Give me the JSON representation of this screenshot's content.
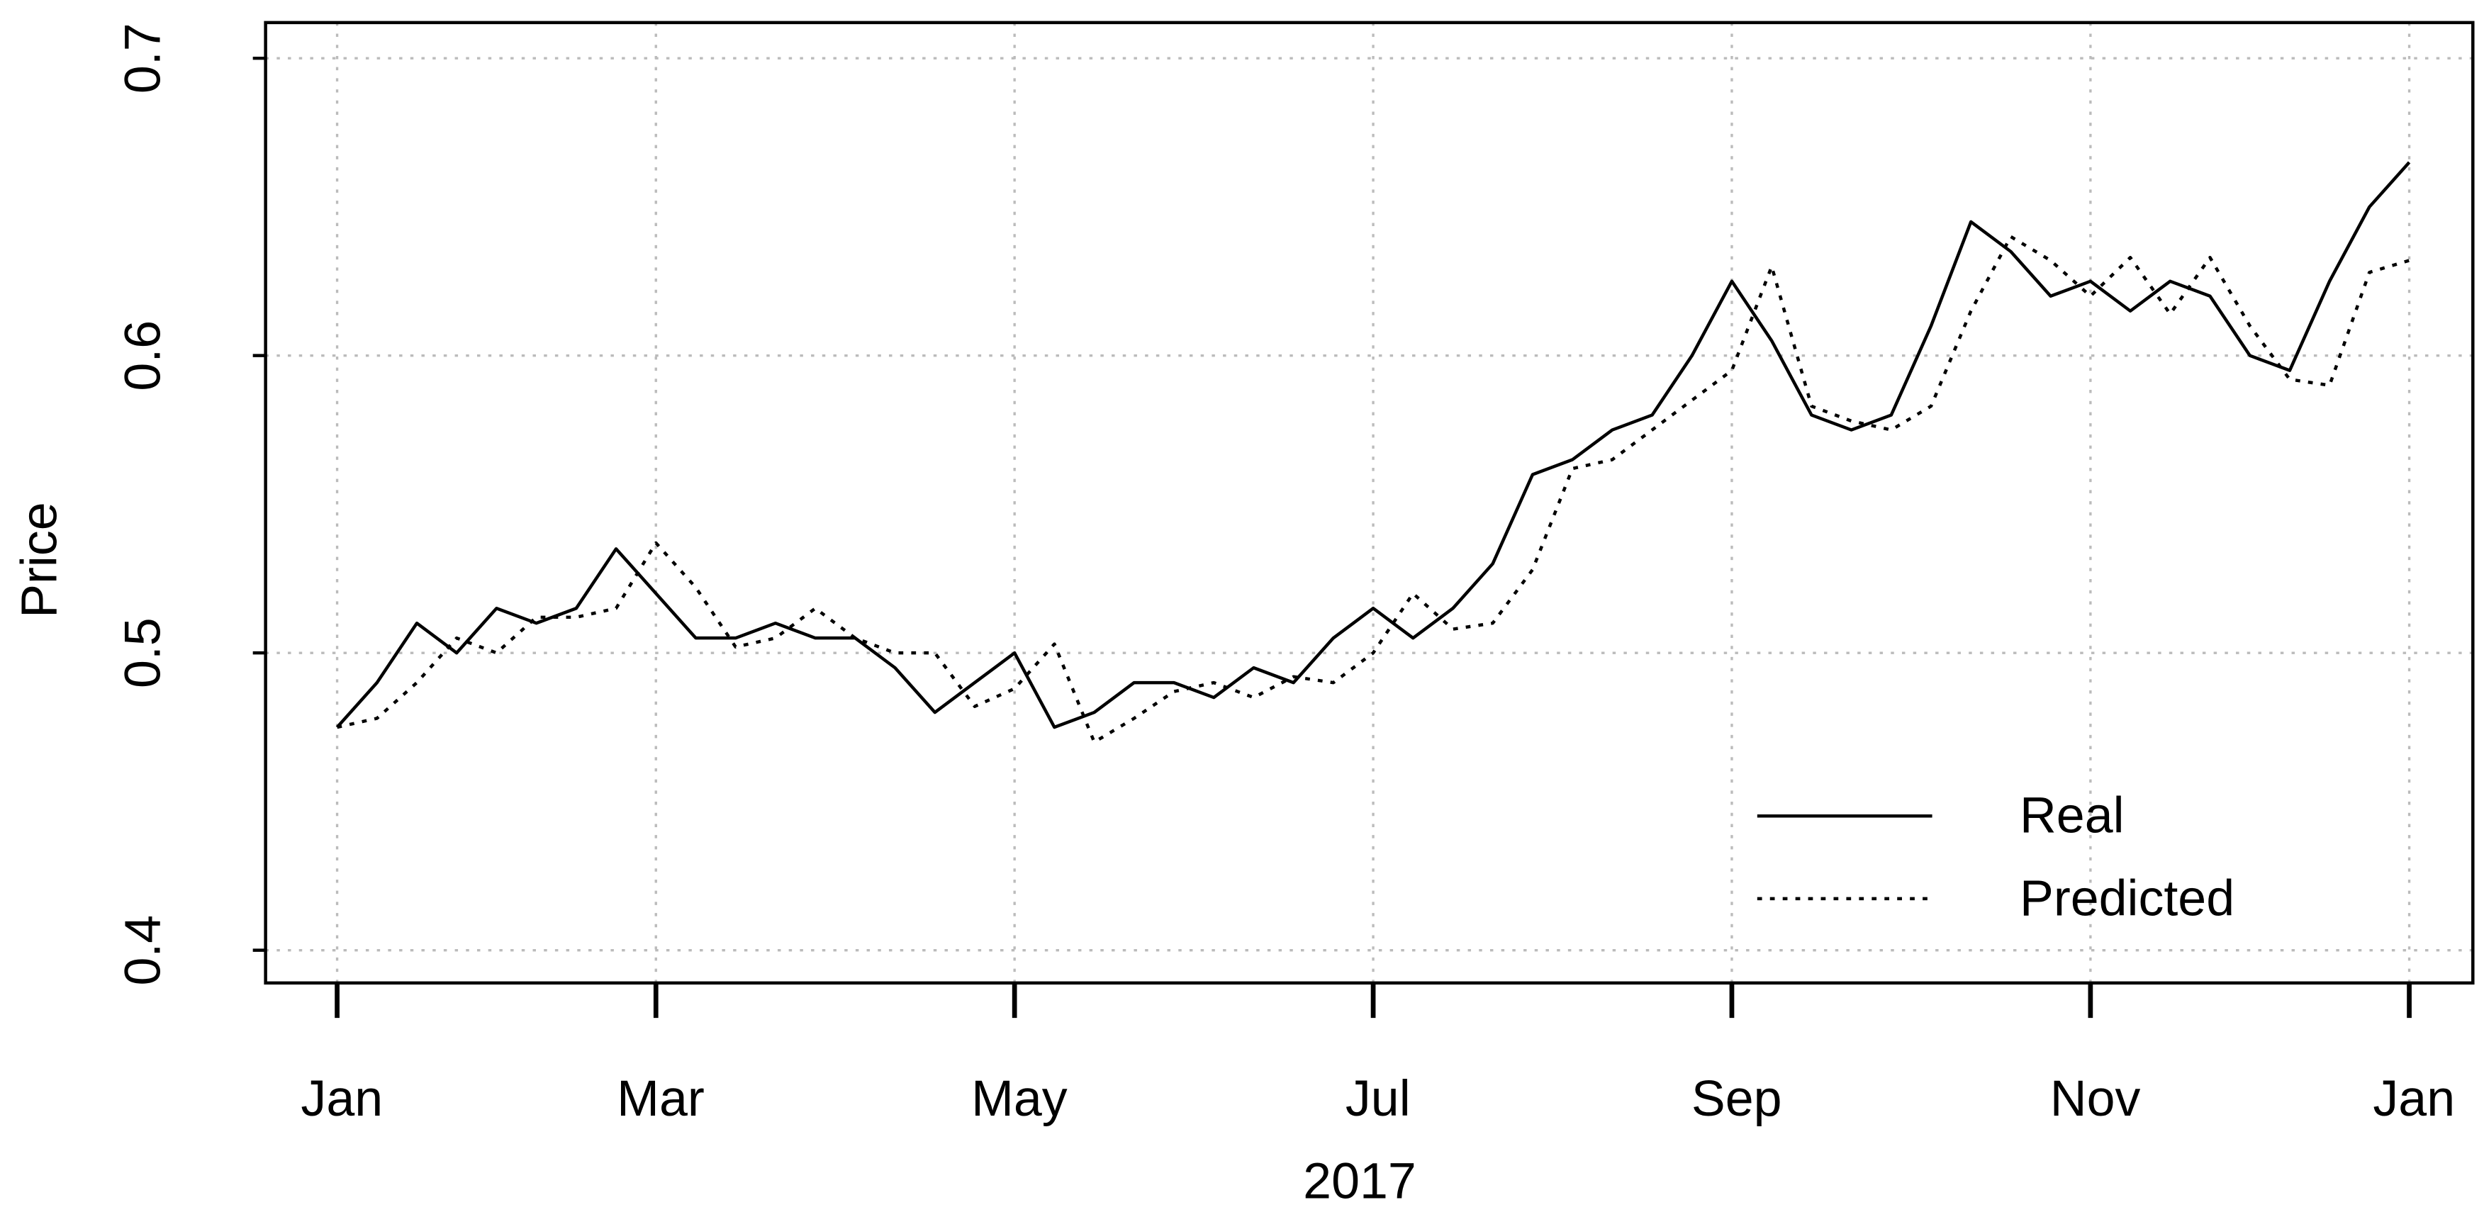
{
  "chart_data": {
    "type": "line",
    "x_label": "2017",
    "y_label": "Price",
    "categories": [
      "Jan",
      null,
      null,
      null,
      null,
      null,
      null,
      null,
      "Mar",
      null,
      null,
      null,
      null,
      null,
      null,
      null,
      null,
      "May",
      null,
      null,
      null,
      null,
      null,
      null,
      null,
      null,
      "Jul",
      null,
      null,
      null,
      null,
      null,
      null,
      null,
      null,
      "Sep",
      null,
      null,
      null,
      null,
      null,
      null,
      null,
      null,
      "Nov",
      null,
      null,
      null,
      null,
      null,
      null,
      null,
      "Jan"
    ],
    "series": [
      {
        "name": "Real",
        "color": "#000000",
        "dash": "solid",
        "values": [
          0.475,
          0.49,
          0.51,
          0.5,
          0.515,
          0.51,
          0.515,
          0.535,
          0.52,
          0.505,
          0.505,
          0.51,
          0.505,
          0.505,
          0.495,
          0.48,
          0.49,
          0.5,
          0.475,
          0.48,
          0.49,
          0.49,
          0.485,
          0.495,
          0.49,
          0.505,
          0.515,
          0.505,
          0.515,
          0.53,
          0.56,
          0.565,
          0.575,
          0.58,
          0.6,
          0.625,
          0.605,
          0.58,
          0.575,
          0.58,
          0.61,
          0.645,
          0.635,
          0.62,
          0.625,
          0.615,
          0.625,
          0.62,
          0.6,
          0.595,
          0.625,
          0.65,
          0.665
        ]
      },
      {
        "name": "Predicted",
        "color": "#000000",
        "dash": "dotted",
        "values": [
          0.475,
          0.478,
          0.49,
          0.505,
          0.5,
          0.512,
          0.512,
          0.515,
          0.537,
          0.522,
          0.502,
          0.505,
          0.515,
          0.505,
          0.5,
          0.5,
          0.482,
          0.488,
          0.503,
          0.47,
          0.478,
          0.487,
          0.49,
          0.485,
          0.492,
          0.49,
          0.5,
          0.52,
          0.508,
          0.51,
          0.528,
          0.562,
          0.565,
          0.575,
          0.585,
          0.595,
          0.63,
          0.583,
          0.578,
          0.575,
          0.583,
          0.615,
          0.64,
          0.632,
          0.62,
          0.633,
          0.614,
          0.633,
          0.61,
          0.592,
          0.59,
          0.628,
          0.632
        ]
      }
    ],
    "ylim": [
      0.389,
      0.712
    ],
    "yticks": [
      0.4,
      0.5,
      0.6,
      0.7
    ],
    "grid": true,
    "legend": "bottom-right"
  }
}
